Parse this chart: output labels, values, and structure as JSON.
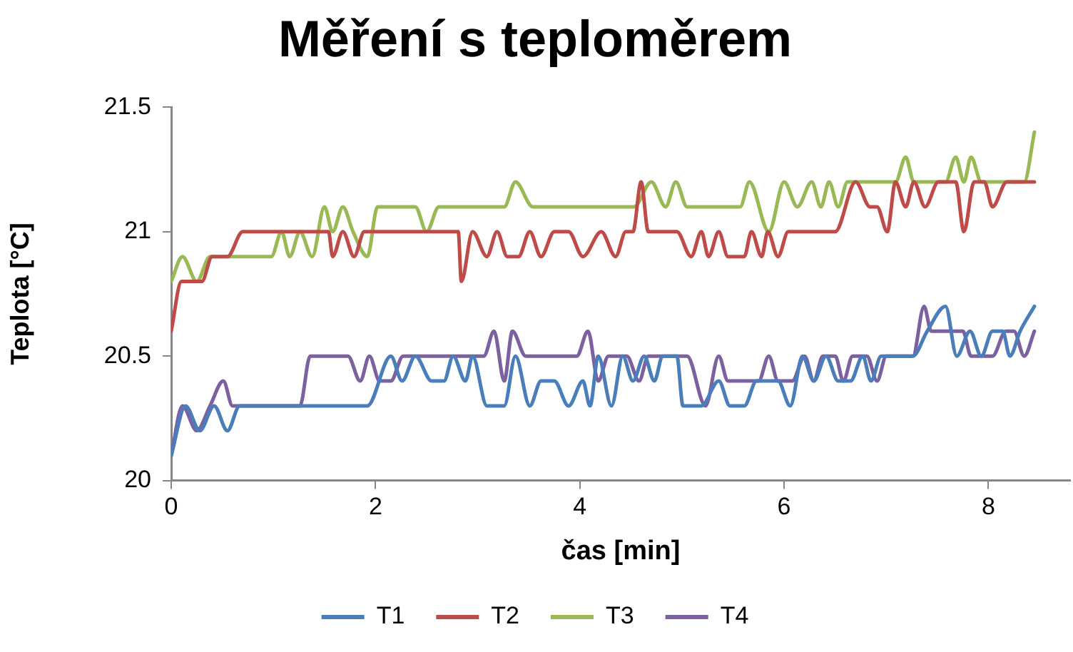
{
  "chart_data": {
    "type": "line",
    "title": "Měření s teploměrem",
    "xlabel": "čas [min]",
    "ylabel": "Teplota [°C]",
    "xlim": [
      0,
      8.8
    ],
    "xticks": [
      0,
      2,
      4,
      6,
      8
    ],
    "ylim": [
      20,
      21.5
    ],
    "yticks": [
      20,
      20.5,
      21,
      21.5
    ],
    "grid": false,
    "legend": "bottom",
    "marker": "none",
    "line_style": "solid",
    "series": [
      {
        "name": "T1",
        "color": "#4a7ebb",
        "x": [
          0,
          0.14,
          0.28,
          0.42,
          0.55,
          0.67,
          1.92,
          2.15,
          2.26,
          2.39,
          2.55,
          2.67,
          2.76,
          2.88,
          2.95,
          3.09,
          3.26,
          3.37,
          3.51,
          3.62,
          3.75,
          3.89,
          4.03,
          4.1,
          4.18,
          4.31,
          4.42,
          4.52,
          4.63,
          4.73,
          4.81,
          4.95,
          5.01,
          5.19,
          5.36,
          5.47,
          5.61,
          5.73,
          5.94,
          6.06,
          6.18,
          6.29,
          6.41,
          6.53,
          6.65,
          6.77,
          6.85,
          6.95,
          7.26,
          7.4,
          7.58,
          7.69,
          7.82,
          7.93,
          8.04,
          8.14,
          8.21,
          8.31,
          8.45
        ],
        "values": [
          20.1,
          20.3,
          20.2,
          20.3,
          20.2,
          20.3,
          20.3,
          20.5,
          20.4,
          20.5,
          20.4,
          20.4,
          20.5,
          20.4,
          20.5,
          20.3,
          20.3,
          20.5,
          20.3,
          20.4,
          20.4,
          20.3,
          20.4,
          20.3,
          20.5,
          20.3,
          20.5,
          20.4,
          20.5,
          20.4,
          20.5,
          20.5,
          20.3,
          20.3,
          20.4,
          20.3,
          20.3,
          20.4,
          20.4,
          20.3,
          20.5,
          20.4,
          20.5,
          20.4,
          20.4,
          20.5,
          20.4,
          20.5,
          20.5,
          20.6,
          20.7,
          20.5,
          20.6,
          20.5,
          20.6,
          20.6,
          20.5,
          20.6,
          20.7
        ]
      },
      {
        "name": "T2",
        "color": "#be4b48",
        "x": [
          0,
          0.1,
          0.3,
          0.4,
          0.55,
          0.7,
          1.54,
          1.58,
          1.68,
          1.79,
          1.89,
          2.81,
          2.84,
          2.95,
          3.09,
          3.19,
          3.29,
          3.4,
          3.51,
          3.62,
          3.75,
          3.89,
          4.03,
          4.21,
          4.35,
          4.45,
          4.52,
          4.6,
          4.67,
          4.95,
          5.09,
          5.19,
          5.26,
          5.36,
          5.45,
          5.61,
          5.68,
          5.78,
          5.84,
          5.94,
          6.04,
          6.5,
          6.7,
          6.84,
          6.91,
          7.01,
          7.09,
          7.19,
          7.27,
          7.38,
          7.51,
          7.68,
          7.76,
          7.86,
          7.96,
          8.04,
          8.18,
          8.45
        ],
        "values": [
          20.6,
          20.8,
          20.8,
          20.9,
          20.9,
          21,
          21,
          20.9,
          21,
          20.9,
          21,
          21,
          20.8,
          21,
          20.9,
          21,
          20.9,
          20.9,
          21,
          20.9,
          21,
          21,
          20.9,
          21,
          20.9,
          21,
          21,
          21.2,
          21,
          21,
          20.9,
          21,
          20.9,
          21,
          20.9,
          20.9,
          21,
          20.9,
          21,
          20.9,
          21,
          21,
          21.2,
          21.1,
          21.1,
          21,
          21.2,
          21.1,
          21.2,
          21.1,
          21.2,
          21.2,
          21,
          21.2,
          21.2,
          21.1,
          21.2,
          21.2
        ]
      },
      {
        "name": "T3",
        "color": "#98b954",
        "x": [
          0,
          0.11,
          0.25,
          0.38,
          0.98,
          1.08,
          1.16,
          1.26,
          1.38,
          1.5,
          1.58,
          1.68,
          1.78,
          1.92,
          2.02,
          2.39,
          2.5,
          2.62,
          3.26,
          3.37,
          3.54,
          4.53,
          4.7,
          4.84,
          4.94,
          5.05,
          5.57,
          5.66,
          5.85,
          6.0,
          6.13,
          6.27,
          6.36,
          6.44,
          6.53,
          6.62,
          7.09,
          7.19,
          7.27,
          7.58,
          7.68,
          7.76,
          7.83,
          7.93,
          8.35,
          8.45
        ],
        "values": [
          20.8,
          20.9,
          20.8,
          20.9,
          20.9,
          21,
          20.9,
          21,
          20.9,
          21.1,
          21,
          21.1,
          21,
          20.9,
          21.1,
          21.1,
          21,
          21.1,
          21.1,
          21.2,
          21.1,
          21.1,
          21.2,
          21.1,
          21.2,
          21.1,
          21.1,
          21.2,
          21,
          21.2,
          21.1,
          21.2,
          21.1,
          21.2,
          21.1,
          21.2,
          21.2,
          21.3,
          21.2,
          21.2,
          21.3,
          21.2,
          21.3,
          21.2,
          21.2,
          21.4
        ]
      },
      {
        "name": "T4",
        "color": "#7d60a0",
        "x": [
          0,
          0.11,
          0.25,
          0.38,
          0.51,
          0.6,
          1.26,
          1.36,
          1.73,
          1.85,
          1.94,
          2.04,
          2.15,
          2.27,
          3.06,
          3.16,
          3.26,
          3.34,
          3.47,
          3.97,
          4.08,
          4.18,
          4.28,
          4.46,
          4.58,
          4.67,
          5.05,
          5.23,
          5.36,
          5.45,
          5.75,
          5.85,
          5.94,
          6.08,
          6.2,
          6.29,
          6.38,
          6.5,
          6.58,
          6.67,
          6.81,
          6.91,
          7.0,
          7.26,
          7.37,
          7.44,
          7.75,
          7.83,
          8.04,
          8.17,
          8.25,
          8.35,
          8.45
        ],
        "values": [
          20.1,
          20.3,
          20.2,
          20.3,
          20.4,
          20.3,
          20.3,
          20.5,
          20.5,
          20.4,
          20.5,
          20.4,
          20.4,
          20.5,
          20.5,
          20.6,
          20.4,
          20.6,
          20.5,
          20.5,
          20.6,
          20.4,
          20.5,
          20.5,
          20.4,
          20.5,
          20.5,
          20.3,
          20.5,
          20.4,
          20.4,
          20.5,
          20.4,
          20.4,
          20.5,
          20.4,
          20.5,
          20.5,
          20.4,
          20.5,
          20.5,
          20.4,
          20.5,
          20.5,
          20.7,
          20.6,
          20.6,
          20.5,
          20.5,
          20.6,
          20.6,
          20.5,
          20.6
        ]
      }
    ]
  }
}
